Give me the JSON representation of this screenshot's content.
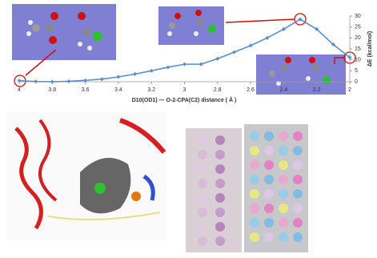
{
  "chart_data": {
    "type": "line",
    "x": [
      4,
      3.9,
      3.8,
      3.7,
      3.6,
      3.5,
      3.4,
      3.3,
      3.2,
      3.1,
      3,
      2.9,
      2.8,
      2.7,
      2.6,
      2.5,
      2.4,
      2.3,
      2.2,
      2.1,
      2
    ],
    "values": [
      0.5,
      0.1,
      0,
      0.2,
      0.6,
      1.2,
      2.2,
      3.5,
      5,
      6.6,
      8,
      8,
      10.5,
      13.5,
      16.5,
      20,
      24,
      28.5,
      24,
      17,
      11
    ],
    "color": "#5b8fc9",
    "xlim": [
      4,
      2
    ],
    "xticks": [
      4,
      3.8,
      3.6,
      3.4,
      3.2,
      3,
      2.8,
      2.6,
      2.4,
      2.2,
      2
    ],
    "ylim": [
      0,
      30
    ],
    "yticks": [
      0,
      5,
      10,
      15,
      20,
      25,
      30
    ],
    "y_axis_side": "right",
    "xlabel": "D10(OD1) — O-2-CPA(C2) distance ( Å )",
    "ylabel": "ΔE (kcal/mol)"
  }
}
